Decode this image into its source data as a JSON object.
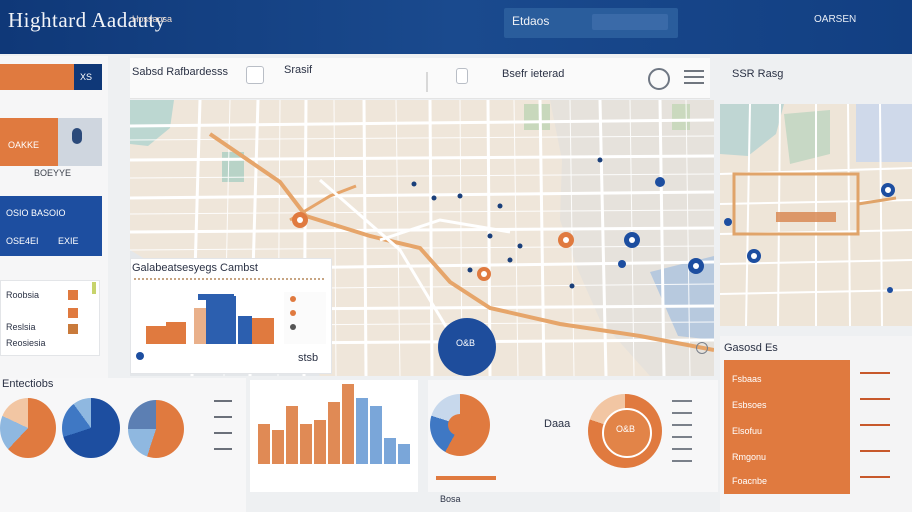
{
  "header": {
    "title": "Hightard Aadauty",
    "subtitle": "Hossaosa",
    "search_label": "Etdaos",
    "account": "OARSEN"
  },
  "left_panel": {
    "card1_label": "XS",
    "card2_label": "OAKKE",
    "card2_caption": "BOEYYE",
    "card3_top": "OSIO BASOIO",
    "card3_left": "OSE4EI",
    "card3_right": "EXIE",
    "list_title": "Roobsia",
    "list_item1": "Reslsia",
    "list_item2": "Reosiesia"
  },
  "toolbar": {
    "left_title": "Sabsd Rafbardesss",
    "mid_title": "Srasif",
    "center_title": "Bsefr ieterad",
    "right_title": "SSR Rasg"
  },
  "map": {
    "chart_panel_title": "Galabeatsesyegs Cambst",
    "value_label": "stsb",
    "circle_label": "O&B",
    "bottom_left_title": "Entectiobs",
    "bottom_mid_caption": "Bosa",
    "bottom_right_title": "Gasosd Es"
  },
  "lower": {
    "middle_label": "Daaa",
    "donut_label": "O&B",
    "table_rows": [
      "Fsbaas",
      "Esbsoes",
      "Elsofuu",
      "Rmgonu",
      "Foacnbe"
    ]
  },
  "colors": {
    "navy": "#1d4ea0",
    "orange": "#e07a3f",
    "map_bg": "#efe6da"
  }
}
